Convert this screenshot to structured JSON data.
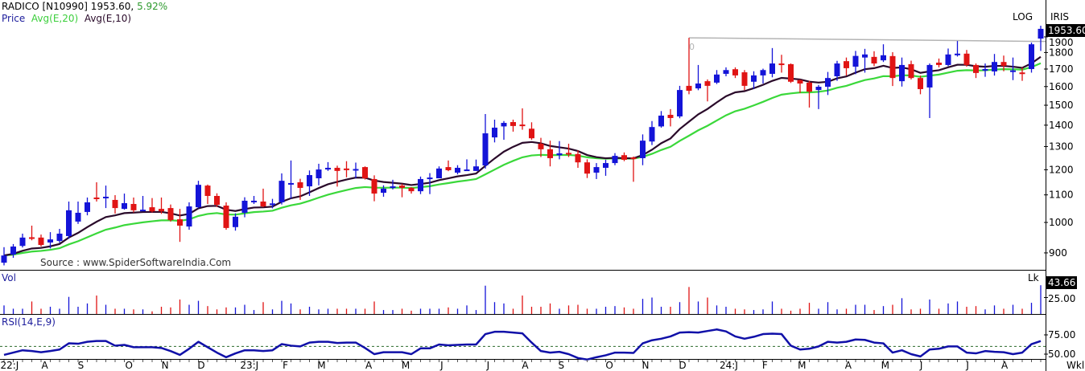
{
  "header": {
    "symbol": "RADICO [N10990] 1953.60,",
    "change_pct": "5.92%",
    "legend_price": "Price",
    "legend_ema20": "Avg(E,20)",
    "legend_ema10": "Avg(E,10)",
    "log_label": "LOG",
    "iris_label": "IRIS",
    "last_price": "1953.60"
  },
  "source_text": "Source : www.SpiderSoftwareIndia.Com",
  "trendline_label": "0",
  "volume_panel": {
    "title": "Vol",
    "unit": "Lk",
    "last_value": "43.66",
    "tick": "25.00"
  },
  "rsi_panel": {
    "title": "RSI(14,E,9)",
    "ticks": [
      "75.00",
      "50.00"
    ]
  },
  "x_axis": {
    "period": "Wkl",
    "month_labels": [
      "22:J",
      "A",
      "S",
      "O",
      "N",
      "D",
      "23:J",
      "F",
      "M",
      "A",
      "M",
      "J",
      "J",
      "A",
      "S",
      "O",
      "N",
      "D",
      "24:J",
      "F",
      "M",
      "A",
      "M",
      "J",
      "J",
      "A"
    ]
  },
  "colors": {
    "up": "#1414d8",
    "down": "#e01414",
    "ema10": "#2a0a2a",
    "ema20": "#3ad83a",
    "rsi": "#1010a8",
    "trendline": "#b4b4b4"
  },
  "chart_data": {
    "type": "candlestick",
    "scale": "log",
    "interval": "weekly",
    "price_ticks": [
      900,
      1000,
      1100,
      1200,
      1300,
      1400,
      1500,
      1600,
      1700,
      1800,
      1900
    ],
    "price_ticks_labels": [
      "900",
      "1000",
      "1100",
      "1200",
      "1300",
      "1400",
      "1500",
      "1600",
      "1700",
      "1800",
      "1900"
    ],
    "ohlc": [
      [
        870,
        918,
        862,
        892
      ],
      [
        895,
        928,
        885,
        920
      ],
      [
        922,
        962,
        917,
        949
      ],
      [
        950,
        989,
        940,
        946
      ],
      [
        949,
        959,
        920,
        925
      ],
      [
        933,
        967,
        914,
        943
      ],
      [
        938,
        978,
        932,
        962
      ],
      [
        954,
        1075,
        945,
        1043
      ],
      [
        1003,
        1075,
        995,
        1034
      ],
      [
        1037,
        1090,
        1025,
        1072
      ],
      [
        1090,
        1149,
        1075,
        1085
      ],
      [
        1090,
        1136,
        1051,
        1093
      ],
      [
        1081,
        1099,
        1031,
        1051
      ],
      [
        1048,
        1105,
        1045,
        1069
      ],
      [
        1066,
        1090,
        1035,
        1043
      ],
      [
        1042,
        1096,
        1040,
        1045
      ],
      [
        1054,
        1088,
        1035,
        1039
      ],
      [
        1048,
        1090,
        1030,
        1039
      ],
      [
        1051,
        1064,
        1003,
        1008
      ],
      [
        1011,
        1048,
        935,
        989
      ],
      [
        986,
        1072,
        975,
        1057
      ],
      [
        1054,
        1155,
        1050,
        1139
      ],
      [
        1136,
        1140,
        1066,
        1096
      ],
      [
        1096,
        1106,
        1055,
        1063
      ],
      [
        1060,
        1072,
        975,
        981
      ],
      [
        984,
        1032,
        972,
        1020
      ],
      [
        1034,
        1091,
        1018,
        1078
      ],
      [
        1075,
        1096,
        1066,
        1078
      ],
      [
        1075,
        1124,
        1054,
        1057
      ],
      [
        1062,
        1085,
        1050,
        1068
      ],
      [
        1072,
        1185,
        1064,
        1155
      ],
      [
        1143,
        1239,
        1086,
        1146
      ],
      [
        1149,
        1163,
        1081,
        1127
      ],
      [
        1133,
        1197,
        1096,
        1178
      ],
      [
        1165,
        1225,
        1137,
        1201
      ],
      [
        1201,
        1232,
        1195,
        1208
      ],
      [
        1208,
        1217,
        1132,
        1195
      ],
      [
        1205,
        1236,
        1169,
        1201
      ],
      [
        1198,
        1230,
        1165,
        1203
      ],
      [
        1211,
        1214,
        1160,
        1165
      ],
      [
        1162,
        1177,
        1076,
        1105
      ],
      [
        1108,
        1137,
        1093,
        1124
      ],
      [
        1130,
        1159,
        1121,
        1133
      ],
      [
        1136,
        1143,
        1091,
        1127
      ],
      [
        1127,
        1130,
        1105,
        1114
      ],
      [
        1114,
        1172,
        1103,
        1162
      ],
      [
        1162,
        1186,
        1103,
        1168
      ],
      [
        1165,
        1214,
        1166,
        1205
      ],
      [
        1211,
        1239,
        1194,
        1198
      ],
      [
        1188,
        1219,
        1181,
        1208
      ],
      [
        1198,
        1244,
        1195,
        1201
      ],
      [
        1195,
        1243,
        1195,
        1214
      ],
      [
        1218,
        1455,
        1205,
        1361
      ],
      [
        1342,
        1427,
        1319,
        1388
      ],
      [
        1394,
        1420,
        1331,
        1411
      ],
      [
        1415,
        1427,
        1369,
        1396
      ],
      [
        1403,
        1484,
        1378,
        1398
      ],
      [
        1383,
        1414,
        1331,
        1338
      ],
      [
        1313,
        1340,
        1254,
        1288
      ],
      [
        1288,
        1327,
        1214,
        1249
      ],
      [
        1262,
        1325,
        1244,
        1270
      ],
      [
        1272,
        1313,
        1254,
        1265
      ],
      [
        1267,
        1283,
        1208,
        1231
      ],
      [
        1231,
        1244,
        1166,
        1184
      ],
      [
        1188,
        1228,
        1162,
        1211
      ],
      [
        1208,
        1242,
        1175,
        1228
      ],
      [
        1228,
        1271,
        1219,
        1259
      ],
      [
        1262,
        1274,
        1236,
        1242
      ],
      [
        1252,
        1256,
        1151,
        1245
      ],
      [
        1249,
        1356,
        1219,
        1327
      ],
      [
        1323,
        1420,
        1307,
        1391
      ],
      [
        1394,
        1470,
        1388,
        1447
      ],
      [
        1451,
        1480,
        1394,
        1435
      ],
      [
        1443,
        1604,
        1434,
        1581
      ],
      [
        1604,
        1894,
        1558,
        1577
      ],
      [
        1590,
        1724,
        1580,
        1617
      ],
      [
        1630,
        1640,
        1520,
        1604
      ],
      [
        1622,
        1694,
        1614,
        1668
      ],
      [
        1672,
        1710,
        1658,
        1694
      ],
      [
        1699,
        1710,
        1648,
        1663
      ],
      [
        1681,
        1694,
        1580,
        1604
      ],
      [
        1627,
        1687,
        1587,
        1663
      ],
      [
        1663,
        1702,
        1617,
        1694
      ],
      [
        1672,
        1828,
        1652,
        1733
      ],
      [
        1733,
        1786,
        1679,
        1724
      ],
      [
        1729,
        1733,
        1620,
        1627
      ],
      [
        1636,
        1640,
        1565,
        1617
      ],
      [
        1622,
        1632,
        1488,
        1572
      ],
      [
        1581,
        1609,
        1480,
        1599
      ],
      [
        1599,
        1683,
        1554,
        1648
      ],
      [
        1658,
        1749,
        1632,
        1733
      ],
      [
        1747,
        1769,
        1662,
        1705
      ],
      [
        1714,
        1810,
        1670,
        1779
      ],
      [
        1769,
        1823,
        1679,
        1788
      ],
      [
        1773,
        1808,
        1717,
        1733
      ],
      [
        1752,
        1852,
        1742,
        1783
      ],
      [
        1778,
        1802,
        1603,
        1648
      ],
      [
        1630,
        1769,
        1600,
        1724
      ],
      [
        1729,
        1750,
        1640,
        1648
      ],
      [
        1648,
        1662,
        1558,
        1586
      ],
      [
        1595,
        1733,
        1435,
        1724
      ],
      [
        1738,
        1763,
        1710,
        1724
      ],
      [
        1724,
        1825,
        1717,
        1788
      ],
      [
        1790,
        1873,
        1775,
        1793
      ],
      [
        1793,
        1816,
        1714,
        1724
      ],
      [
        1724,
        1733,
        1648,
        1677
      ],
      [
        1695,
        1733,
        1655,
        1700
      ],
      [
        1686,
        1791,
        1662,
        1742
      ],
      [
        1742,
        1781,
        1687,
        1719
      ],
      [
        1688,
        1769,
        1636,
        1692
      ],
      [
        1680,
        1710,
        1632,
        1677
      ],
      [
        1700,
        1863,
        1679,
        1852
      ],
      [
        1889,
        1975,
        1810,
        1953.6
      ]
    ],
    "trendline": {
      "from_price": 1894,
      "to_price": 1870
    },
    "volume": [
      13,
      8,
      8,
      19,
      8,
      11,
      8,
      26,
      11,
      16,
      28,
      14,
      8,
      8,
      7,
      7,
      4,
      11,
      10,
      22,
      14,
      20,
      12,
      7,
      10,
      10,
      14,
      6,
      18,
      7,
      20,
      16,
      7,
      11,
      7,
      8,
      8,
      8,
      8,
      8,
      19,
      6,
      6,
      8,
      5,
      8,
      8,
      8,
      10,
      8,
      13,
      6,
      43,
      18,
      16,
      8,
      28,
      11,
      11,
      16,
      8,
      13,
      14,
      8,
      8,
      11,
      12,
      10,
      8,
      23,
      25,
      11,
      11,
      18,
      41,
      19,
      25,
      13,
      11,
      8,
      7,
      6,
      7,
      19,
      8,
      5,
      8,
      17,
      8,
      18,
      7,
      8,
      14,
      14,
      6,
      12,
      14,
      24,
      7,
      8,
      22,
      8,
      16,
      19,
      11,
      12,
      7,
      13,
      8,
      14,
      8,
      17,
      43.66
    ],
    "rsi": [
      49,
      52,
      55,
      54,
      52.5,
      54,
      56,
      64,
      63.5,
      66,
      67,
      67,
      61,
      62,
      59,
      59,
      59,
      58,
      54,
      49,
      57,
      66,
      59,
      52,
      46,
      51,
      55,
      55,
      54,
      55,
      63,
      61,
      60,
      65,
      66,
      66,
      64.5,
      65,
      65,
      58,
      50,
      52.5,
      52.5,
      52.5,
      50,
      57.5,
      57.5,
      62.5,
      61.5,
      62,
      62.5,
      62.5,
      76,
      79,
      79,
      78,
      77,
      65,
      54,
      52,
      53,
      50,
      45,
      43,
      46,
      48.5,
      52,
      52,
      51.5,
      64,
      68,
      70,
      73,
      78,
      78.5,
      78,
      80,
      82,
      79.5,
      73,
      70,
      72.5,
      76,
      76.5,
      76,
      61,
      56,
      57,
      60,
      66,
      65,
      66,
      69,
      68.5,
      65,
      64,
      52,
      55,
      50,
      47,
      56,
      57,
      60,
      60,
      52,
      51,
      54,
      53,
      52.5,
      50,
      52,
      63,
      67
    ],
    "rsi_reference_level": 60,
    "ema_periods": [
      10,
      20
    ],
    "volume_ylim": [
      0,
      50
    ],
    "rsi_ylim": [
      40,
      85
    ]
  }
}
